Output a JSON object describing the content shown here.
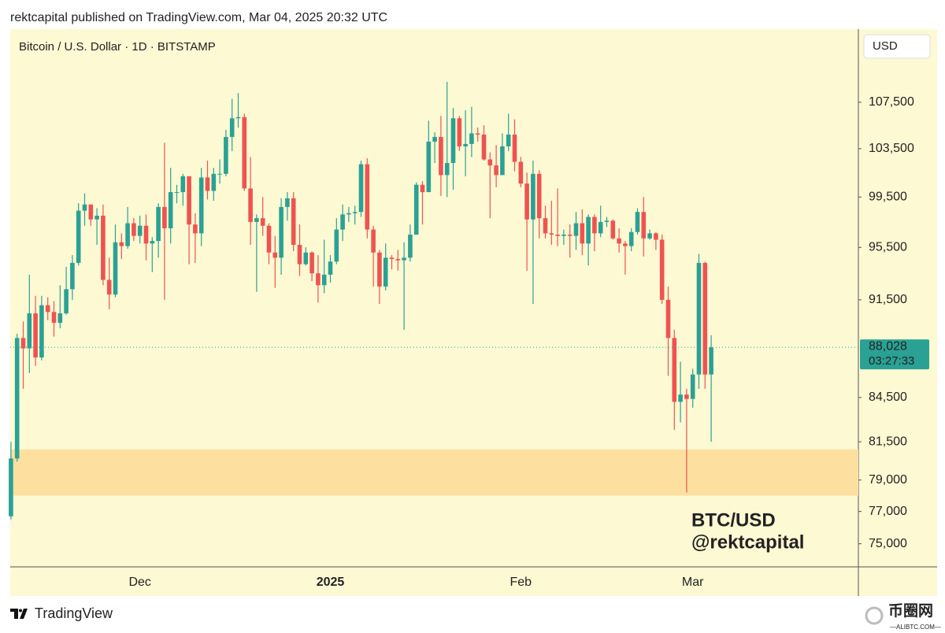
{
  "header": "rektcapital published on TradingView.com, Mar 04, 2025 20:32 UTC",
  "footer": "TradingView",
  "watermark": {
    "name": "币圈网",
    "site": "—ALIBTC.COM—"
  },
  "chart_data": {
    "type": "candlestick",
    "title": "Bitcoin / U.S. Dollar · 1D · BITSTAMP",
    "currency": "USD",
    "annotations": [
      "BTC/USD",
      "@rektcapital"
    ],
    "up_color": "#2aa194",
    "down_color": "#ef5350",
    "background": "#fdf9d3",
    "log": true,
    "grid": false,
    "zone": {
      "range": [
        78000,
        81000
      ],
      "color": "#fde0a0"
    },
    "last_price": {
      "value": 88028,
      "label": "88,028"
    },
    "countdown": "03:27:33",
    "ylim": [
      73600,
      114100
    ],
    "yticks": [
      {
        "value": 75000,
        "label": "75,000"
      },
      {
        "value": 77000,
        "label": "77,000"
      },
      {
        "value": 79000,
        "label": "79,000"
      },
      {
        "value": 81500,
        "label": "81,500"
      },
      {
        "value": 84500,
        "label": "84,500"
      },
      {
        "value": 91500,
        "label": "91,500"
      },
      {
        "value": 95500,
        "label": "95,500"
      },
      {
        "value": 99500,
        "label": "99,500"
      },
      {
        "value": 103500,
        "label": "103,500"
      },
      {
        "value": 107500,
        "label": "107,500"
      }
    ],
    "categories": [
      null,
      null,
      null,
      null,
      null,
      null,
      null,
      null,
      null,
      null,
      null,
      null,
      null,
      null,
      null,
      null,
      null,
      null,
      null,
      null,
      null,
      "Dec",
      null,
      null,
      null,
      null,
      null,
      null,
      null,
      null,
      null,
      null,
      null,
      null,
      null,
      null,
      null,
      null,
      null,
      null,
      null,
      null,
      null,
      null,
      null,
      null,
      null,
      null,
      null,
      null,
      null,
      null,
      "2025",
      null,
      null,
      null,
      null,
      null,
      null,
      null,
      null,
      null,
      null,
      null,
      null,
      null,
      null,
      null,
      null,
      null,
      null,
      null,
      null,
      null,
      null,
      null,
      null,
      null,
      null,
      null,
      null,
      null,
      null,
      "Feb",
      null,
      null,
      null,
      null,
      null,
      null,
      null,
      null,
      null,
      null,
      null,
      null,
      null,
      null,
      null,
      null,
      null,
      null,
      null,
      null,
      null,
      null,
      null,
      null,
      null,
      null,
      null,
      "Mar",
      null,
      null,
      null
    ],
    "open": [
      76700,
      80400,
      88700,
      87950,
      90500,
      87300,
      91100,
      90600,
      89800,
      90500,
      92300,
      94300,
      98400,
      98900,
      97700,
      98000,
      93000,
      91900,
      95900,
      95600,
      97400,
      96400,
      97200,
      95800,
      96000,
      98700,
      97000,
      99900,
      99900,
      101200,
      97300,
      96600,
      101100,
      100000,
      101400,
      101400,
      104500,
      106100,
      106200,
      100200,
      97500,
      97800,
      97200,
      95100,
      94700,
      98700,
      99400,
      95700,
      94200,
      95100,
      93500,
      92600,
      93400,
      94400,
      96900,
      98100,
      98200,
      98300,
      102200,
      96900,
      95100,
      92500,
      94700,
      94600,
      94500,
      94700,
      96500,
      100500,
      99900,
      104100,
      104500,
      101300,
      102300,
      106100,
      103700,
      103900,
      104800,
      104700,
      102600,
      102100,
      101300,
      103700,
      104700,
      102400,
      100600,
      97700,
      101400,
      97800,
      96600,
      96500,
      96400,
      96500,
      96400,
      97400,
      95800,
      97900,
      96600,
      97500,
      97600,
      96200,
      95800,
      95600,
      96700,
      98300,
      96200,
      96600,
      96100,
      91500,
      88700,
      84200,
      84700,
      84400,
      86100,
      94300,
      86100
    ],
    "high": [
      81500,
      89000,
      89900,
      93400,
      91800,
      91800,
      91700,
      91400,
      92600,
      94000,
      94900,
      99000,
      99800,
      98900,
      98600,
      98900,
      94700,
      97300,
      96600,
      98700,
      97800,
      98000,
      98100,
      96300,
      99000,
      104000,
      101900,
      100500,
      101400,
      101200,
      98200,
      101900,
      102500,
      101900,
      102600,
      105100,
      107800,
      108300,
      106500,
      102800,
      98100,
      99500,
      97400,
      96400,
      99400,
      99900,
      99900,
      97300,
      95500,
      95200,
      94900,
      96100,
      94900,
      97800,
      98900,
      98700,
      98800,
      102500,
      102700,
      97200,
      95300,
      95800,
      94900,
      95300,
      95900,
      97300,
      100700,
      100800,
      105900,
      104900,
      106300,
      109300,
      107000,
      106300,
      106800,
      107100,
      105300,
      105500,
      103200,
      103800,
      104800,
      106500,
      106000,
      102800,
      101500,
      102500,
      101700,
      98800,
      99200,
      100200,
      96900,
      97300,
      98300,
      98500,
      98100,
      98100,
      98800,
      97900,
      97700,
      97000,
      96000,
      97000,
      98600,
      99500,
      96900,
      96700,
      96500,
      92500,
      89300,
      87000,
      85100,
      86500,
      95000,
      94400,
      88900
    ],
    "low": [
      76500,
      80200,
      85100,
      86200,
      86700,
      87100,
      90000,
      88800,
      89400,
      90400,
      91500,
      94100,
      97200,
      97200,
      95700,
      92600,
      90800,
      91700,
      94600,
      95400,
      96000,
      95800,
      94500,
      93600,
      94700,
      91500,
      95800,
      99000,
      98800,
      94200,
      94300,
      95600,
      99300,
      99200,
      100600,
      101200,
      103300,
      105300,
      100000,
      95700,
      92100,
      96400,
      94200,
      92400,
      93400,
      97600,
      95200,
      93300,
      94100,
      92900,
      91300,
      92000,
      92800,
      94200,
      96000,
      97500,
      97300,
      97900,
      96200,
      92500,
      91200,
      92200,
      93800,
      93700,
      89300,
      94400,
      96500,
      97300,
      99900,
      102300,
      99600,
      99500,
      100100,
      103300,
      101200,
      102800,
      104100,
      102500,
      97800,
      100300,
      101300,
      103300,
      101600,
      100300,
      93700,
      91200,
      96200,
      96200,
      95700,
      95600,
      95700,
      94700,
      95300,
      94900,
      94100,
      95200,
      96300,
      97100,
      96100,
      95100,
      93400,
      95200,
      96500,
      94800,
      96100,
      95300,
      91200,
      86000,
      82300,
      82800,
      78200,
      83800,
      85100,
      85100,
      81500
    ],
    "close": [
      80400,
      88700,
      87950,
      90500,
      87300,
      91100,
      90600,
      89800,
      90500,
      92300,
      94300,
      98400,
      98900,
      97700,
      98000,
      93000,
      91900,
      95900,
      95600,
      97400,
      96400,
      97200,
      95800,
      96000,
      98700,
      97000,
      99900,
      99900,
      101200,
      97300,
      96600,
      101100,
      100000,
      101400,
      101400,
      104500,
      106100,
      106200,
      100200,
      97500,
      97800,
      97200,
      95100,
      94700,
      98700,
      99400,
      95700,
      94200,
      95100,
      93500,
      92600,
      93400,
      94400,
      96900,
      98100,
      98200,
      98300,
      102200,
      96900,
      95100,
      92500,
      94700,
      94600,
      94500,
      94700,
      96500,
      100500,
      99900,
      104100,
      104500,
      101300,
      102300,
      106100,
      103700,
      103900,
      104800,
      104700,
      102600,
      102100,
      101300,
      103700,
      104700,
      102400,
      100600,
      97700,
      101400,
      97800,
      96600,
      96500,
      96400,
      96500,
      96400,
      97400,
      95800,
      97900,
      96600,
      97500,
      97600,
      96200,
      95800,
      95600,
      96700,
      98300,
      96200,
      96600,
      96100,
      91500,
      88700,
      84200,
      84700,
      84400,
      86100,
      94300,
      86100,
      88028
    ]
  }
}
